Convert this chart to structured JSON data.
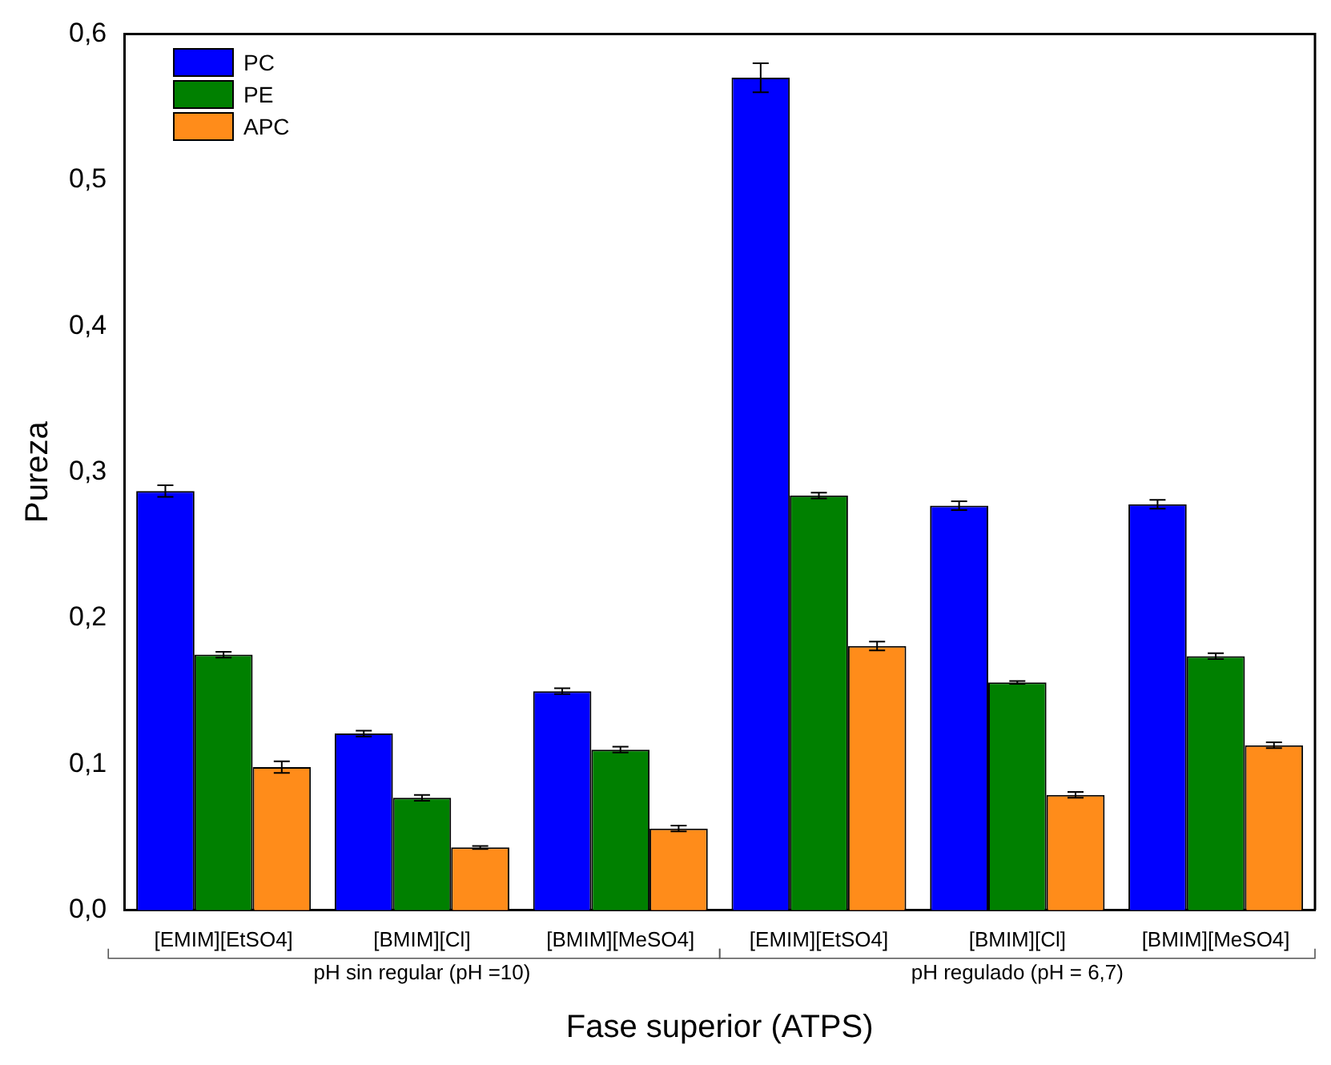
{
  "chart_data": {
    "type": "bar",
    "xlabel": "Fase superior (ATPS)",
    "ylabel": "Pureza",
    "categories": [
      "[EMIM][EtSO4]",
      "[BMIM][Cl]",
      "[BMIM][MeSO4]",
      "[EMIM][EtSO4]",
      "[BMIM][Cl]",
      "[BMIM][MeSO4]"
    ],
    "series": [
      {
        "name": "PC",
        "color": "#0000ff",
        "values": [
          0.287,
          0.121,
          0.15,
          0.57,
          0.277,
          0.278
        ],
        "errors": [
          0.004,
          0.002,
          0.002,
          0.01,
          0.003,
          0.003
        ]
      },
      {
        "name": "PE",
        "color": "#008000",
        "values": [
          0.175,
          0.077,
          0.11,
          0.284,
          0.156,
          0.174
        ],
        "errors": [
          0.002,
          0.002,
          0.002,
          0.002,
          0.001,
          0.002
        ]
      },
      {
        "name": "APC",
        "color": "#ff8c1a",
        "values": [
          0.098,
          0.043,
          0.056,
          0.181,
          0.079,
          0.113
        ],
        "errors": [
          0.004,
          0.001,
          0.002,
          0.003,
          0.002,
          0.002
        ]
      }
    ],
    "ylim": [
      0,
      0.6
    ],
    "yticks": [
      {
        "value": 0,
        "label": "0,0"
      },
      {
        "value": 0.1,
        "label": "0,1"
      },
      {
        "value": 0.2,
        "label": "0,2"
      },
      {
        "value": 0.3,
        "label": "0,3"
      },
      {
        "value": 0.4,
        "label": "0,4"
      },
      {
        "value": 0.5,
        "label": "0,5"
      },
      {
        "value": 0.6,
        "label": "0,6"
      }
    ],
    "annotations": [
      "pH sin regular (pH =10)",
      "pH regulado (pH = 6,7)"
    ],
    "legend": "top left",
    "grid": false
  }
}
